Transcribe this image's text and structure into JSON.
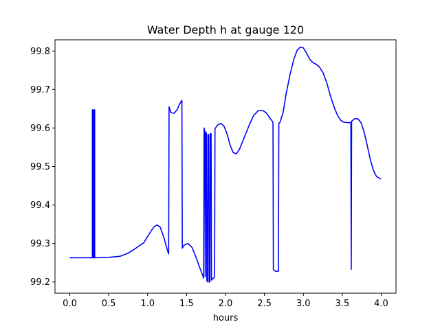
{
  "chart_data": {
    "type": "line",
    "title": "Water Depth h at gauge 120",
    "xlabel": "hours",
    "ylabel": "",
    "xlim": [
      -0.19,
      4.19
    ],
    "ylim": [
      99.171,
      99.829
    ],
    "xticks": [
      0.0,
      0.5,
      1.0,
      1.5,
      2.0,
      2.5,
      3.0,
      3.5,
      4.0
    ],
    "xtick_labels": [
      "0.0",
      "0.5",
      "1.0",
      "1.5",
      "2.0",
      "2.5",
      "3.0",
      "3.5",
      "4.0"
    ],
    "yticks": [
      99.2,
      99.3,
      99.4,
      99.5,
      99.6,
      99.7,
      99.8
    ],
    "ytick_labels": [
      "99.2",
      "99.3",
      "99.4",
      "99.5",
      "99.6",
      "99.7",
      "99.8"
    ],
    "grid": false,
    "legend": "none",
    "series": [
      {
        "color": "#0000ff",
        "points": [
          [
            0.0,
            99.263
          ],
          [
            0.29,
            99.263
          ],
          [
            0.29,
            99.647
          ],
          [
            0.3,
            99.647
          ],
          [
            0.3,
            99.263
          ],
          [
            0.31,
            99.263
          ],
          [
            0.31,
            99.647
          ],
          [
            0.32,
            99.647
          ],
          [
            0.32,
            99.263
          ],
          [
            0.5,
            99.264
          ],
          [
            0.65,
            99.267
          ],
          [
            0.75,
            99.275
          ],
          [
            0.85,
            99.288
          ],
          [
            0.95,
            99.302
          ],
          [
            1.02,
            99.325
          ],
          [
            1.08,
            99.343
          ],
          [
            1.12,
            99.348
          ],
          [
            1.16,
            99.343
          ],
          [
            1.21,
            99.315
          ],
          [
            1.25,
            99.285
          ],
          [
            1.27,
            99.273
          ],
          [
            1.275,
            99.655
          ],
          [
            1.3,
            99.64
          ],
          [
            1.34,
            99.638
          ],
          [
            1.38,
            99.648
          ],
          [
            1.41,
            99.662
          ],
          [
            1.44,
            99.672
          ],
          [
            1.445,
            99.288
          ],
          [
            1.47,
            99.296
          ],
          [
            1.52,
            99.3
          ],
          [
            1.57,
            99.29
          ],
          [
            1.62,
            99.265
          ],
          [
            1.67,
            99.237
          ],
          [
            1.72,
            99.21
          ],
          [
            1.725,
            99.6
          ],
          [
            1.735,
            99.588
          ],
          [
            1.74,
            99.215
          ],
          [
            1.745,
            99.59
          ],
          [
            1.755,
            99.585
          ],
          [
            1.76,
            99.205
          ],
          [
            1.77,
            99.2
          ],
          [
            1.775,
            99.583
          ],
          [
            1.785,
            99.583
          ],
          [
            1.79,
            99.2
          ],
          [
            1.8,
            99.2
          ],
          [
            1.805,
            99.585
          ],
          [
            1.815,
            99.585
          ],
          [
            1.82,
            99.205
          ],
          [
            1.86,
            99.213
          ],
          [
            1.865,
            99.598
          ],
          [
            1.9,
            99.608
          ],
          [
            1.94,
            99.612
          ],
          [
            1.98,
            99.605
          ],
          [
            2.02,
            99.585
          ],
          [
            2.06,
            99.555
          ],
          [
            2.1,
            99.536
          ],
          [
            2.14,
            99.533
          ],
          [
            2.18,
            99.545
          ],
          [
            2.24,
            99.575
          ],
          [
            2.3,
            99.605
          ],
          [
            2.36,
            99.632
          ],
          [
            2.42,
            99.645
          ],
          [
            2.47,
            99.646
          ],
          [
            2.52,
            99.64
          ],
          [
            2.57,
            99.626
          ],
          [
            2.61,
            99.615
          ],
          [
            2.615,
            99.232
          ],
          [
            2.64,
            99.228
          ],
          [
            2.68,
            99.228
          ],
          [
            2.685,
            99.612
          ],
          [
            2.7,
            99.615
          ],
          [
            2.74,
            99.64
          ],
          [
            2.78,
            99.69
          ],
          [
            2.83,
            99.74
          ],
          [
            2.88,
            99.78
          ],
          [
            2.92,
            99.802
          ],
          [
            2.96,
            99.81
          ],
          [
            3.0,
            99.808
          ],
          [
            3.04,
            99.795
          ],
          [
            3.08,
            99.779
          ],
          [
            3.12,
            99.77
          ],
          [
            3.16,
            99.766
          ],
          [
            3.2,
            99.76
          ],
          [
            3.25,
            99.745
          ],
          [
            3.3,
            99.718
          ],
          [
            3.35,
            99.682
          ],
          [
            3.4,
            99.652
          ],
          [
            3.44,
            99.632
          ],
          [
            3.48,
            99.62
          ],
          [
            3.52,
            99.615
          ],
          [
            3.58,
            99.614
          ],
          [
            3.61,
            99.614
          ],
          [
            3.615,
            99.233
          ],
          [
            3.62,
            99.618
          ],
          [
            3.66,
            99.624
          ],
          [
            3.7,
            99.624
          ],
          [
            3.74,
            99.614
          ],
          [
            3.78,
            99.59
          ],
          [
            3.82,
            99.555
          ],
          [
            3.86,
            99.518
          ],
          [
            3.9,
            99.49
          ],
          [
            3.94,
            99.474
          ],
          [
            3.98,
            99.469
          ],
          [
            4.0,
            99.468
          ]
        ]
      }
    ]
  }
}
